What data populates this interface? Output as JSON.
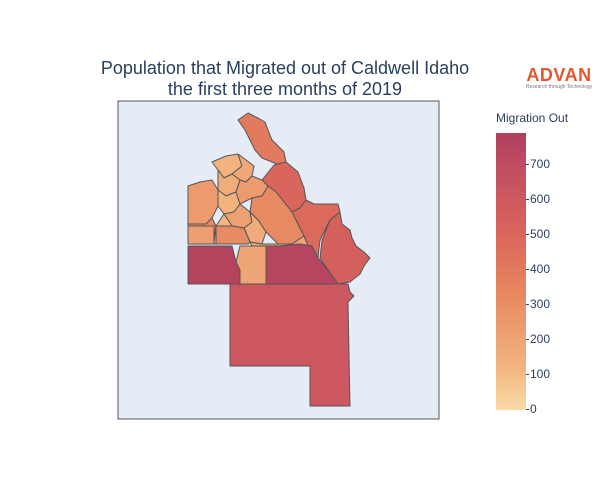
{
  "title": {
    "line1": "Population that Migrated out of Caldwell Idaho",
    "line2": "the first three months of 2019"
  },
  "logo": {
    "word": "ADVAN",
    "tagline": "Research through Technology"
  },
  "colorbar": {
    "title": "Migration Out",
    "min": 0,
    "max": 790,
    "ticks": [
      "0",
      "100",
      "200",
      "300",
      "400",
      "500",
      "600",
      "700"
    ]
  },
  "colors": {
    "map_background": "#e5ecf6",
    "border": "#555555"
  },
  "chart_data": {
    "type": "choropleth",
    "title": "Population that Migrated out of Caldwell Idaho the first three months of 2019",
    "colorscale": [
      "#f9dba7",
      "#f2b680",
      "#ec9b6f",
      "#e5835e",
      "#dc6a5c",
      "#cf5a5f",
      "#c04d62",
      "#b03f5d"
    ],
    "regions": [
      {
        "id": "r1",
        "value": 380
      },
      {
        "id": "r2",
        "value": 480
      },
      {
        "id": "r3",
        "value": 450
      },
      {
        "id": "r4",
        "value": 520
      },
      {
        "id": "r5",
        "value": 120
      },
      {
        "id": "r6",
        "value": 170
      },
      {
        "id": "r7",
        "value": 150
      },
      {
        "id": "r8",
        "value": 230
      },
      {
        "id": "r9",
        "value": 300
      },
      {
        "id": "r10",
        "value": 130
      },
      {
        "id": "r11",
        "value": 230
      },
      {
        "id": "r12",
        "value": 200
      },
      {
        "id": "r13",
        "value": 310
      },
      {
        "id": "r14",
        "value": 160
      },
      {
        "id": "r15",
        "value": 110
      },
      {
        "id": "r16",
        "value": 210
      },
      {
        "id": "r17",
        "value": 300
      },
      {
        "id": "r18",
        "value": 190
      },
      {
        "id": "r19",
        "value": 760
      },
      {
        "id": "r20",
        "value": 180
      },
      {
        "id": "r21",
        "value": 740
      },
      {
        "id": "r22",
        "value": 590
      }
    ]
  }
}
